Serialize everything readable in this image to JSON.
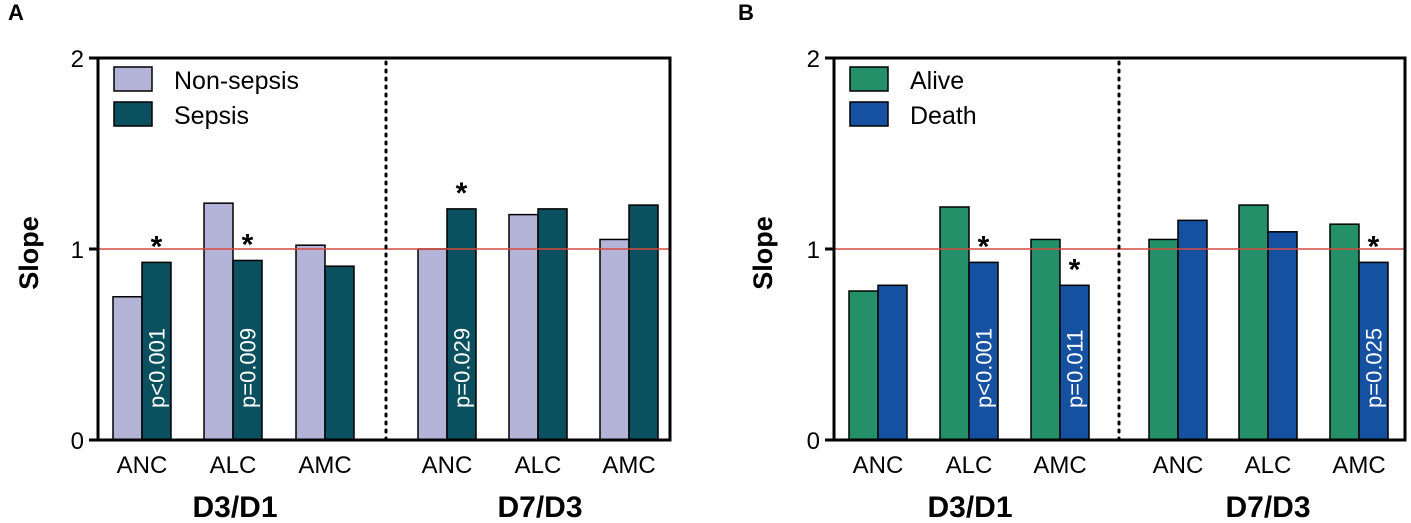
{
  "chart_data": [
    {
      "panel_label": "A",
      "type": "bar",
      "ylabel": "Slope",
      "ylim": [
        0,
        2
      ],
      "yticks": [
        "0",
        "1",
        "2"
      ],
      "reference_line": 1,
      "legend_position": "top-left",
      "groups": [
        {
          "label": "D3/D1",
          "categories": [
            "ANC",
            "ALC",
            "AMC"
          ]
        },
        {
          "label": "D7/D3",
          "categories": [
            "ANC",
            "ALC",
            "AMC"
          ]
        }
      ],
      "series": [
        {
          "name": "Non-sepsis",
          "color": "#b4b4d8",
          "values": [
            0.75,
            1.24,
            1.02,
            1.0,
            1.18,
            1.05
          ]
        },
        {
          "name": "Sepsis",
          "color": "#0a505f",
          "values": [
            0.93,
            0.94,
            0.91,
            1.21,
            1.21,
            1.23
          ]
        }
      ],
      "annotations": [
        {
          "bar": 0,
          "star": "*",
          "pvalue": "p<0.001"
        },
        {
          "bar": 1,
          "star": "*",
          "pvalue": "p=0.009"
        },
        {
          "bar": 3,
          "star": "*",
          "pvalue": "p=0.029"
        }
      ]
    },
    {
      "panel_label": "B",
      "type": "bar",
      "ylabel": "Slope",
      "ylim": [
        0,
        2
      ],
      "yticks": [
        "0",
        "1",
        "2"
      ],
      "reference_line": 1,
      "legend_position": "top-left",
      "groups": [
        {
          "label": "D3/D1",
          "categories": [
            "ANC",
            "ALC",
            "AMC"
          ]
        },
        {
          "label": "D7/D3",
          "categories": [
            "ANC",
            "ALC",
            "AMC"
          ]
        }
      ],
      "series": [
        {
          "name": "Alive",
          "color": "#23906a",
          "values": [
            0.78,
            1.22,
            1.05,
            1.05,
            1.23,
            1.13
          ]
        },
        {
          "name": "Death",
          "color": "#1650a0",
          "values": [
            0.81,
            0.93,
            0.81,
            1.15,
            1.09,
            0.93
          ]
        }
      ],
      "annotations": [
        {
          "bar": 1,
          "star": "*",
          "pvalue": "p<0.001"
        },
        {
          "bar": 2,
          "star": "*",
          "pvalue": "p=0.011"
        },
        {
          "bar": 5,
          "star": "*",
          "pvalue": "p=0.025"
        }
      ]
    }
  ]
}
